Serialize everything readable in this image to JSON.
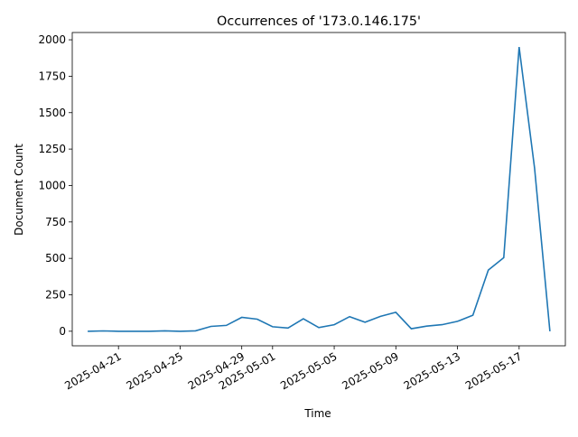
{
  "chart_data": {
    "type": "line",
    "title": "Occurrences of '173.0.146.175'",
    "xlabel": "Time",
    "ylabel": "Document Count",
    "ylim": [
      -100,
      2050
    ],
    "xlim": [
      "2025-04-18",
      "2025-05-20"
    ],
    "grid": false,
    "line_color": "#1f77b4",
    "yticks": [
      0,
      250,
      500,
      750,
      1000,
      1250,
      1500,
      1750,
      2000
    ],
    "xticks": [
      "2025-04-21",
      "2025-04-25",
      "2025-04-29",
      "2025-05-01",
      "2025-05-05",
      "2025-05-09",
      "2025-05-13",
      "2025-05-17"
    ],
    "x": [
      "2025-04-19",
      "2025-04-20",
      "2025-04-21",
      "2025-04-22",
      "2025-04-23",
      "2025-04-24",
      "2025-04-25",
      "2025-04-26",
      "2025-04-27",
      "2025-04-28",
      "2025-04-29",
      "2025-04-30",
      "2025-05-01",
      "2025-05-02",
      "2025-05-03",
      "2025-05-04",
      "2025-05-05",
      "2025-05-06",
      "2025-05-07",
      "2025-05-08",
      "2025-05-09",
      "2025-05-10",
      "2025-05-11",
      "2025-05-12",
      "2025-05-13",
      "2025-05-14",
      "2025-05-15",
      "2025-05-16",
      "2025-05-17",
      "2025-05-18",
      "2025-05-19"
    ],
    "y": [
      0,
      2,
      0,
      0,
      0,
      3,
      0,
      3,
      33,
      40,
      95,
      83,
      31,
      22,
      85,
      25,
      45,
      100,
      62,
      102,
      130,
      17,
      35,
      45,
      68,
      110,
      420,
      505,
      1950,
      1120,
      0
    ]
  }
}
